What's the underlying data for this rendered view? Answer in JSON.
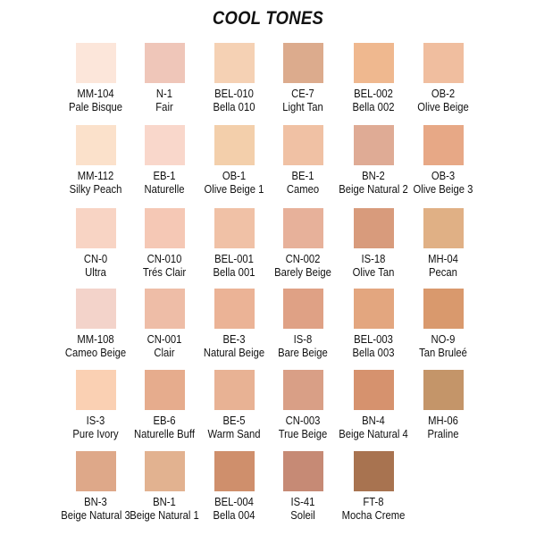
{
  "title": "COOL TONES",
  "swatches": [
    {
      "code": "MM-104",
      "name": "Pale Bisque",
      "color": "#fce6da"
    },
    {
      "code": "N-1",
      "name": "Fair",
      "color": "#efc6b9"
    },
    {
      "code": "BEL-010",
      "name": "Bella 010",
      "color": "#f5d1b4"
    },
    {
      "code": "CE-7",
      "name": "Light Tan",
      "color": "#dcab8d"
    },
    {
      "code": "BEL-002",
      "name": "Bella 002",
      "color": "#efb88f"
    },
    {
      "code": "OB-2",
      "name": "Olive Beige",
      "color": "#f0be9f"
    },
    {
      "code": "MM-112",
      "name": "Silky Peach",
      "color": "#fbe1cb"
    },
    {
      "code": "EB-1",
      "name": "Naturelle",
      "color": "#f9d7cb"
    },
    {
      "code": "OB-1",
      "name": "Olive Beige 1",
      "color": "#f3cfab"
    },
    {
      "code": "BE-1",
      "name": "Cameo",
      "color": "#f0c1a4"
    },
    {
      "code": "BN-2",
      "name": "Beige Natural 2",
      "color": "#dfab95"
    },
    {
      "code": "OB-3",
      "name": "Olive Beige 3",
      "color": "#e7a886"
    },
    {
      "code": "CN-0",
      "name": "Ultra",
      "color": "#f8d4c4"
    },
    {
      "code": "CN-010",
      "name": "Trés Clair",
      "color": "#f5c8b5"
    },
    {
      "code": "BEL-001",
      "name": "Bella 001",
      "color": "#f0c1a6"
    },
    {
      "code": "CN-002",
      "name": "Barely Beige",
      "color": "#e7b19a"
    },
    {
      "code": "IS-18",
      "name": "Olive Tan",
      "color": "#d89b7c"
    },
    {
      "code": "MH-04",
      "name": "Pecan",
      "color": "#e0b085"
    },
    {
      "code": "MM-108",
      "name": "Cameo Beige",
      "color": "#f3d3ca"
    },
    {
      "code": "CN-001",
      "name": "Clair",
      "color": "#eebda7"
    },
    {
      "code": "BE-3",
      "name": "Natural Beige",
      "color": "#ebb396"
    },
    {
      "code": "IS-8",
      "name": "Bare Beige",
      "color": "#dfa185"
    },
    {
      "code": "BEL-003",
      "name": "Bella 003",
      "color": "#e3a67f"
    },
    {
      "code": "NO-9",
      "name": "Tan Bruleé",
      "color": "#d9996d"
    },
    {
      "code": "IS-3",
      "name": "Pure Ivory",
      "color": "#fad0b3"
    },
    {
      "code": "EB-6",
      "name": "Naturelle Buff",
      "color": "#e6ac8d"
    },
    {
      "code": "BE-5",
      "name": "Warm Sand",
      "color": "#e8b294"
    },
    {
      "code": "CN-003",
      "name": "True Beige",
      "color": "#d99f86"
    },
    {
      "code": "BN-4",
      "name": "Beige Natural 4",
      "color": "#d6926e"
    },
    {
      "code": "MH-06",
      "name": "Praline",
      "color": "#c49569"
    },
    {
      "code": "BN-3",
      "name": "Beige Natural 3",
      "color": "#dea889"
    },
    {
      "code": "BN-1",
      "name": "Beige Natural 1",
      "color": "#e2b290"
    },
    {
      "code": "BEL-004",
      "name": "Bella 004",
      "color": "#cf8f6c"
    },
    {
      "code": "IS-41",
      "name": "Soleil",
      "color": "#c68a75"
    },
    {
      "code": "FT-8",
      "name": "Mocha Creme",
      "color": "#a87350"
    }
  ]
}
